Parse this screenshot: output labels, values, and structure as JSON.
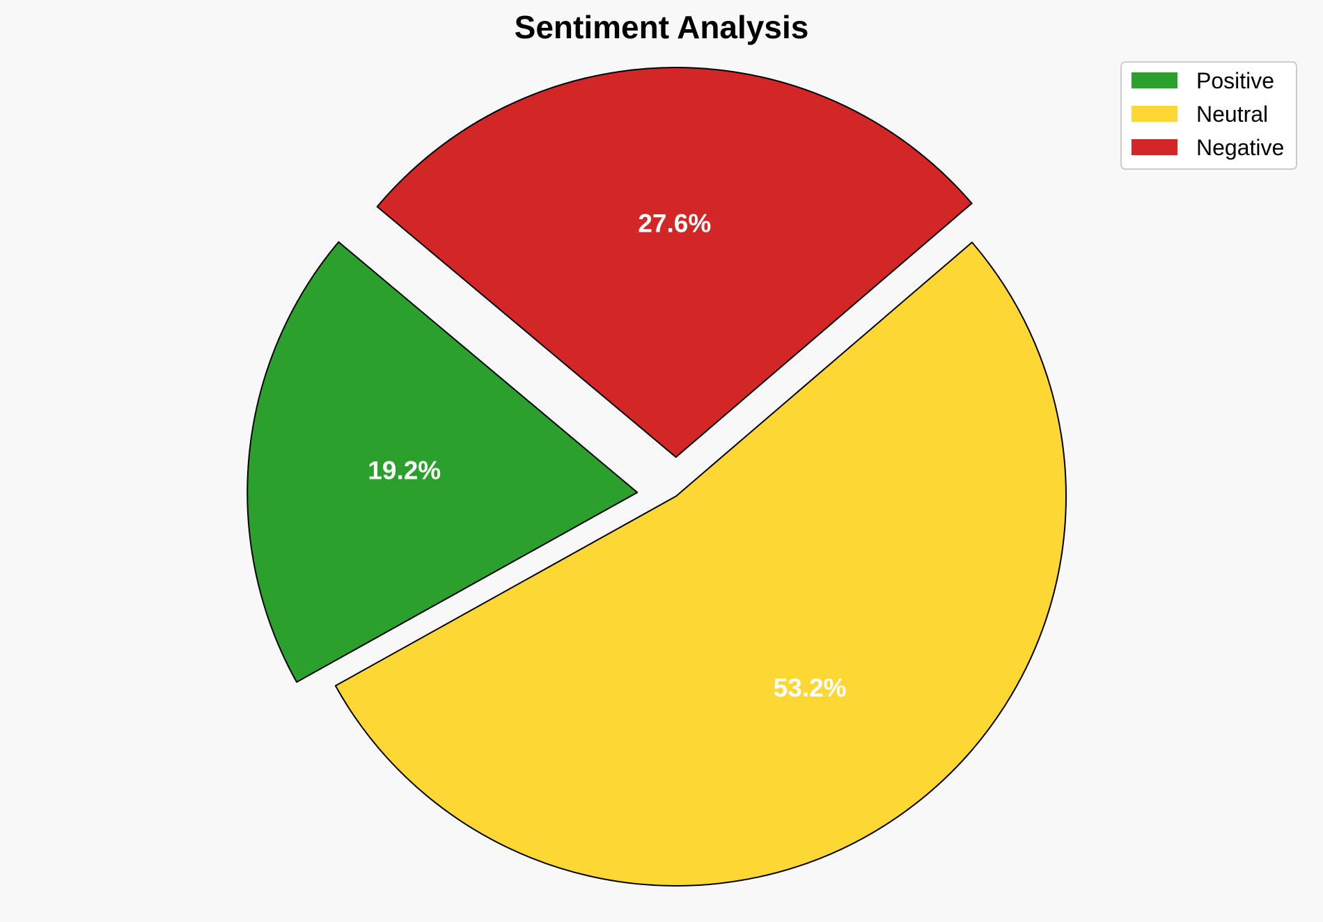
{
  "chart_data": {
    "type": "pie",
    "title": "Sentiment Analysis",
    "categories": [
      "Positive",
      "Neutral",
      "Negative"
    ],
    "values": [
      19.2,
      53.2,
      27.6
    ],
    "labels": [
      "19.2%",
      "53.2%",
      "27.6%"
    ],
    "colors": [
      "#2ca02c",
      "#fdd835",
      "#d32627"
    ],
    "edge_color": "#000000",
    "exploded": [
      true,
      false,
      true
    ],
    "legend_position": "top-right"
  }
}
